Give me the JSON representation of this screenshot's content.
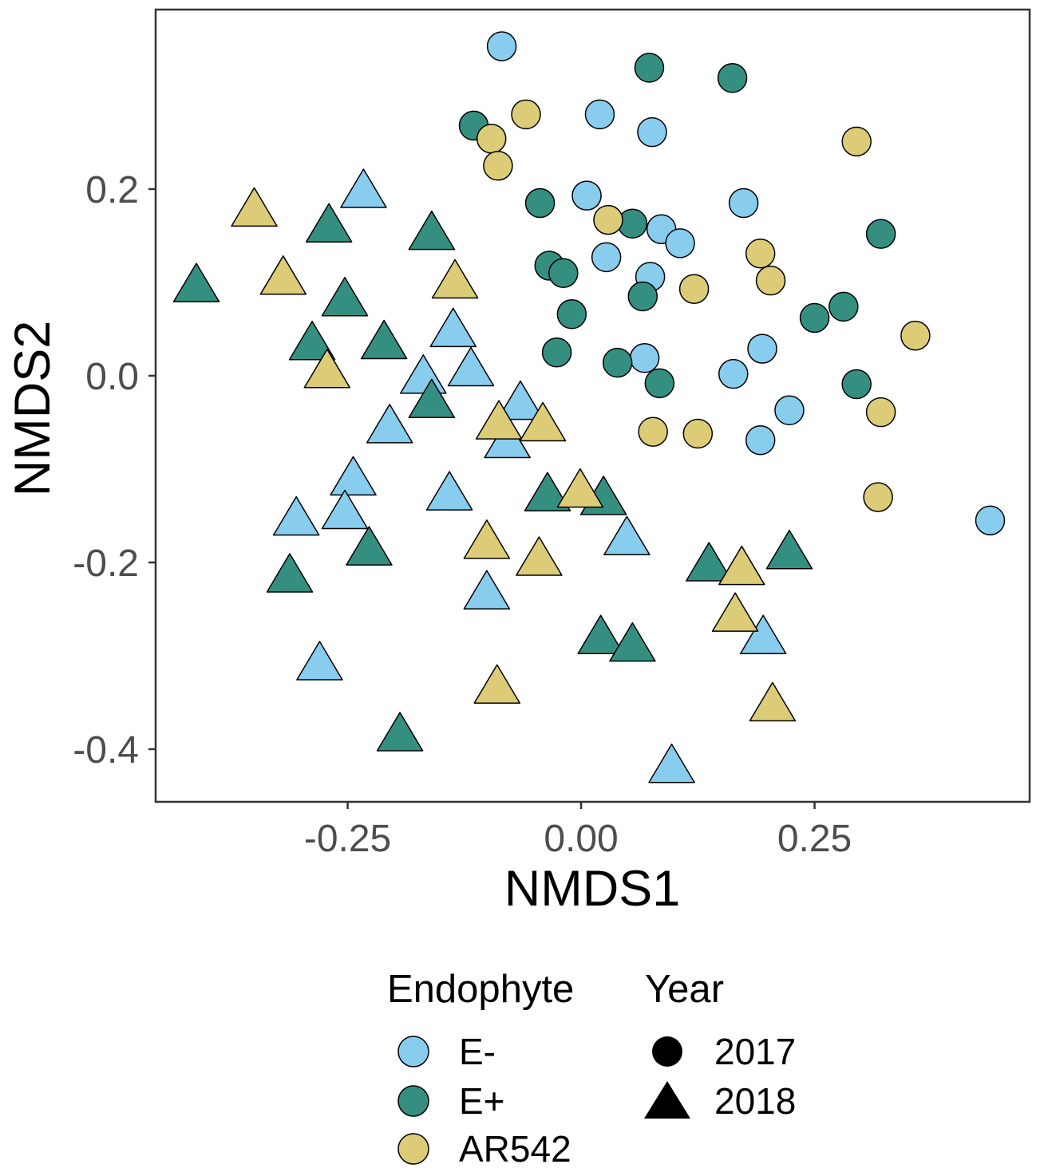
{
  "chart_data": {
    "type": "scatter",
    "xlabel": "NMDS1",
    "ylabel": "NMDS2",
    "xlim": [
      -0.4556,
      0.4803
    ],
    "ylim": [
      -0.4564,
      0.3923
    ],
    "xticks": [
      {
        "value": -0.25,
        "label": "-0.25"
      },
      {
        "value": 0,
        "label": "0.00"
      },
      {
        "value": 0.25,
        "label": "0.25"
      }
    ],
    "yticks": [
      {
        "value": -0.4,
        "label": "-0.4"
      },
      {
        "value": -0.2,
        "label": "-0.2"
      },
      {
        "value": 0,
        "label": "0.0"
      },
      {
        "value": 0.2,
        "label": "0.2"
      }
    ],
    "grid": false,
    "legend_position": "bottom",
    "color_legend": {
      "title": "Endophyte",
      "items": [
        {
          "label": "E-",
          "color": "#88CCEE"
        },
        {
          "label": "E+",
          "color": "#358F80"
        },
        {
          "label": "AR542",
          "color": "#DDCC77"
        }
      ]
    },
    "shape_legend": {
      "title": "Year",
      "items": [
        {
          "label": "2017",
          "shape": "circle"
        },
        {
          "label": "2018",
          "shape": "triangle"
        }
      ]
    },
    "series": [
      {
        "endophyte": "E-",
        "year": "2017",
        "points": [
          [
            -0.085,
            0.353
          ],
          [
            0.02,
            0.28
          ],
          [
            0.076,
            0.261
          ],
          [
            0.006,
            0.193
          ],
          [
            0.174,
            0.185
          ],
          [
            0.086,
            0.157
          ],
          [
            0.106,
            0.142
          ],
          [
            0.027,
            0.127
          ],
          [
            0.074,
            0.106
          ],
          [
            0.068,
            0.019
          ],
          [
            0.194,
            0.029
          ],
          [
            0.163,
            0.002
          ],
          [
            0.223,
            -0.037
          ],
          [
            0.192,
            -0.069
          ],
          [
            0.438,
            -0.155
          ]
        ]
      },
      {
        "endophyte": "E+",
        "year": "2017",
        "points": [
          [
            0.073,
            0.33
          ],
          [
            0.162,
            0.319
          ],
          [
            -0.115,
            0.268
          ],
          [
            -0.044,
            0.185
          ],
          [
            0.055,
            0.163
          ],
          [
            0.321,
            0.152
          ],
          [
            -0.034,
            0.118
          ],
          [
            -0.019,
            0.11
          ],
          [
            0.066,
            0.085
          ],
          [
            -0.01,
            0.066
          ],
          [
            0.281,
            0.074
          ],
          [
            0.25,
            0.062
          ],
          [
            -0.026,
            0.025
          ],
          [
            0.039,
            0.014
          ],
          [
            0.084,
            -0.008
          ],
          [
            0.295,
            -0.009
          ]
        ]
      },
      {
        "endophyte": "AR542",
        "year": "2017",
        "points": [
          [
            -0.059,
            0.28
          ],
          [
            -0.096,
            0.254
          ],
          [
            0.295,
            0.251
          ],
          [
            -0.089,
            0.225
          ],
          [
            0.029,
            0.167
          ],
          [
            0.192,
            0.131
          ],
          [
            0.121,
            0.093
          ],
          [
            0.203,
            0.102
          ],
          [
            0.358,
            0.043
          ],
          [
            0.321,
            -0.039
          ],
          [
            0.077,
            -0.06
          ],
          [
            0.125,
            -0.062
          ],
          [
            0.318,
            -0.13
          ]
        ]
      },
      {
        "endophyte": "E-",
        "year": "2018",
        "points": [
          [
            -0.233,
            0.2
          ],
          [
            -0.137,
            0.051
          ],
          [
            -0.169,
            0.001
          ],
          [
            -0.118,
            0.009
          ],
          [
            -0.065,
            -0.027
          ],
          [
            -0.205,
            -0.052
          ],
          [
            -0.079,
            -0.068
          ],
          [
            -0.244,
            -0.108
          ],
          [
            -0.253,
            -0.144
          ],
          [
            -0.305,
            -0.151
          ],
          [
            -0.141,
            -0.124
          ],
          [
            0.049,
            -0.172
          ],
          [
            -0.101,
            -0.23
          ],
          [
            0.195,
            -0.278
          ],
          [
            -0.28,
            -0.306
          ],
          [
            0.097,
            -0.416
          ]
        ]
      },
      {
        "endophyte": "E+",
        "year": "2018",
        "points": [
          [
            -0.412,
            0.099
          ],
          [
            -0.27,
            0.163
          ],
          [
            -0.16,
            0.155
          ],
          [
            -0.253,
            0.084
          ],
          [
            -0.288,
            0.037
          ],
          [
            -0.211,
            0.038
          ],
          [
            -0.16,
            -0.025
          ],
          [
            -0.036,
            -0.125
          ],
          [
            0.024,
            -0.129
          ],
          [
            -0.227,
            -0.183
          ],
          [
            -0.312,
            -0.212
          ],
          [
            0.137,
            -0.2
          ],
          [
            0.223,
            -0.187
          ],
          [
            0.021,
            -0.278
          ],
          [
            0.055,
            -0.286
          ],
          [
            -0.194,
            -0.382
          ]
        ]
      },
      {
        "endophyte": "AR542",
        "year": "2018",
        "points": [
          [
            -0.35,
            0.18
          ],
          [
            -0.319,
            0.107
          ],
          [
            -0.135,
            0.103
          ],
          [
            -0.272,
            0.007
          ],
          [
            -0.088,
            -0.048
          ],
          [
            -0.041,
            -0.05
          ],
          [
            -0.001,
            -0.121
          ],
          [
            -0.101,
            -0.176
          ],
          [
            -0.045,
            -0.194
          ],
          [
            0.172,
            -0.204
          ],
          [
            0.165,
            -0.254
          ],
          [
            -0.09,
            -0.331
          ],
          [
            0.205,
            -0.35
          ]
        ]
      }
    ]
  }
}
